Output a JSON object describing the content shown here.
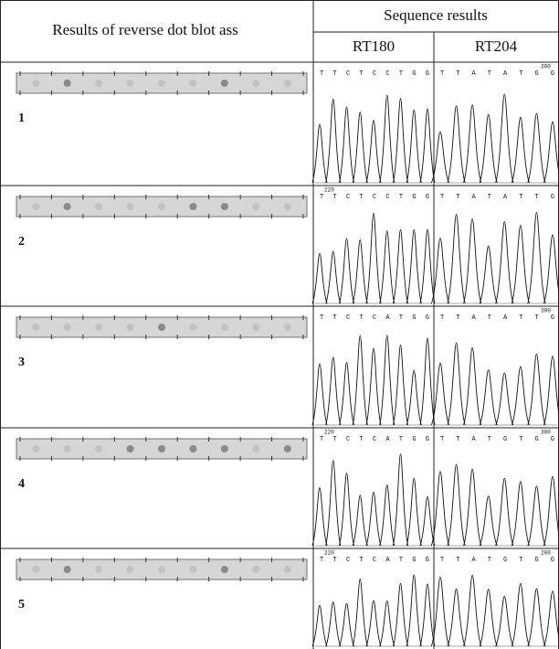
{
  "table": {
    "header": {
      "left": "Results of reverse dot blot ass",
      "group": "Sequence results",
      "columns": [
        "RT180",
        "RT204"
      ]
    },
    "rows": [
      {
        "label": "1",
        "rt180_bases": "T T C T C C T G G",
        "rt204_bases": "T T A T A T G G",
        "rt204_position": "300"
      },
      {
        "label": "2",
        "rt180_bases": "T T C T C C T G G",
        "rt180_position": "220",
        "rt204_bases": "T T A T A T T G"
      },
      {
        "label": "3",
        "rt180_bases": "T T C T C A T G G",
        "rt204_bases": "T T A T A T T G",
        "rt204_position": "300"
      },
      {
        "label": "4",
        "rt180_bases": "T T C T C A T G G",
        "rt180_position": "220",
        "rt204_bases": "T T A T G T G G",
        "rt204_position": "300"
      },
      {
        "label": "5",
        "rt180_bases": "T T C T C A T G G",
        "rt180_position": "220",
        "rt204_bases": "T T A T G T G G",
        "rt204_position": "200"
      }
    ]
  }
}
